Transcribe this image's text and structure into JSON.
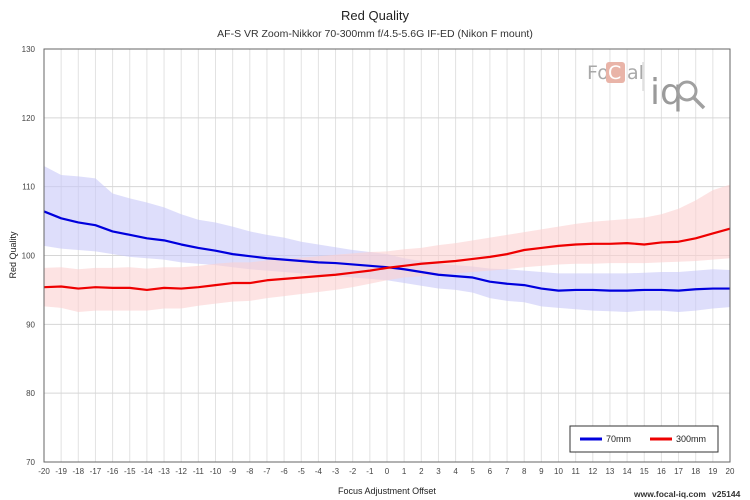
{
  "chart_data": {
    "type": "line",
    "title": "Red Quality",
    "subtitle": "AF-S VR Zoom-Nikkor 70-300mm f/4.5-5.6G IF-ED (Nikon F mount)",
    "xlabel": "Focus Adjustment Offset",
    "ylabel": "Red Quality",
    "xlim": [
      -20,
      20
    ],
    "ylim": [
      70,
      130
    ],
    "yticks": [
      70,
      80,
      90,
      100,
      110,
      120,
      130
    ],
    "x": [
      -20,
      -19,
      -18,
      -17,
      -16,
      -15,
      -14,
      -13,
      -12,
      -11,
      -10,
      -9,
      -8,
      -7,
      -6,
      -5,
      -4,
      -3,
      -2,
      -1,
      0,
      1,
      2,
      3,
      4,
      5,
      6,
      7,
      8,
      9,
      10,
      11,
      12,
      13,
      14,
      15,
      16,
      17,
      18,
      19,
      20
    ],
    "grid": true,
    "legend_position": "bottom-right",
    "series": [
      {
        "name": "70mm",
        "color": "#0000dd",
        "band_color": "#c8c8f8",
        "values": [
          106.4,
          105.4,
          104.8,
          104.4,
          103.5,
          103.0,
          102.5,
          102.2,
          101.6,
          101.1,
          100.7,
          100.2,
          99.9,
          99.6,
          99.4,
          99.2,
          99.0,
          98.9,
          98.7,
          98.5,
          98.3,
          98.0,
          97.6,
          97.2,
          97.0,
          96.8,
          96.2,
          95.9,
          95.7,
          95.2,
          94.9,
          95.0,
          95.0,
          94.9,
          94.9,
          95.0,
          95.0,
          94.9,
          95.1,
          95.2,
          95.2
        ],
        "upper": [
          113.0,
          111.7,
          111.5,
          111.2,
          109.0,
          108.3,
          107.7,
          107.0,
          106.0,
          105.2,
          104.8,
          104.2,
          103.5,
          103.0,
          102.6,
          102.0,
          101.6,
          101.2,
          100.8,
          100.5,
          100.2,
          99.6,
          99.2,
          98.8,
          98.6,
          98.4,
          98.1,
          98.0,
          97.8,
          97.6,
          97.4,
          97.4,
          97.4,
          97.4,
          97.4,
          97.5,
          97.6,
          97.6,
          97.8,
          98.0,
          97.9
        ],
        "lower": [
          101.4,
          101.0,
          100.8,
          100.6,
          100.2,
          99.8,
          99.6,
          99.4,
          99.0,
          98.8,
          98.6,
          98.3,
          98.0,
          97.8,
          97.6,
          97.4,
          97.2,
          97.0,
          96.8,
          96.6,
          96.4,
          96.0,
          95.6,
          95.2,
          95.0,
          94.6,
          93.8,
          93.4,
          93.2,
          92.6,
          92.4,
          92.2,
          92.0,
          91.9,
          91.8,
          92.0,
          92.0,
          91.8,
          92.0,
          92.3,
          92.5
        ]
      },
      {
        "name": "300mm",
        "color": "#ee0000",
        "band_color": "#fcd0d0",
        "values": [
          95.4,
          95.5,
          95.2,
          95.4,
          95.3,
          95.3,
          95.0,
          95.3,
          95.2,
          95.4,
          95.7,
          96.0,
          96.0,
          96.4,
          96.6,
          96.8,
          97.0,
          97.2,
          97.5,
          97.8,
          98.2,
          98.5,
          98.8,
          99.0,
          99.2,
          99.5,
          99.8,
          100.2,
          100.8,
          101.1,
          101.4,
          101.6,
          101.7,
          101.7,
          101.8,
          101.6,
          101.9,
          102.0,
          102.5,
          103.2,
          103.9
        ],
        "upper": [
          98.2,
          98.3,
          98.0,
          98.2,
          98.2,
          98.3,
          98.1,
          98.3,
          98.3,
          98.5,
          98.8,
          99.0,
          99.0,
          99.3,
          99.5,
          99.7,
          99.9,
          100.1,
          100.3,
          100.5,
          100.6,
          100.9,
          101.1,
          101.5,
          101.8,
          102.2,
          102.6,
          103.0,
          103.4,
          103.8,
          104.2,
          104.6,
          104.9,
          105.1,
          105.3,
          105.5,
          106.0,
          106.8,
          108.0,
          109.5,
          110.3
        ],
        "lower": [
          92.6,
          92.4,
          91.8,
          92.0,
          92.0,
          92.0,
          92.0,
          92.3,
          92.3,
          92.7,
          93.0,
          93.3,
          93.4,
          93.8,
          94.1,
          94.4,
          94.7,
          95.0,
          95.4,
          95.9,
          96.4,
          96.8,
          97.0,
          97.2,
          97.4,
          97.6,
          97.8,
          98.0,
          98.3,
          98.5,
          98.7,
          98.8,
          98.8,
          98.9,
          98.9,
          98.9,
          99.0,
          99.1,
          99.2,
          99.4,
          99.6
        ]
      }
    ]
  },
  "logo": {
    "text_fo": "Fo",
    "text_c": "C",
    "text_al": "al",
    "text_iq": "iq"
  },
  "footer": {
    "url": "www.focal-iq.com",
    "version": "v25144"
  }
}
